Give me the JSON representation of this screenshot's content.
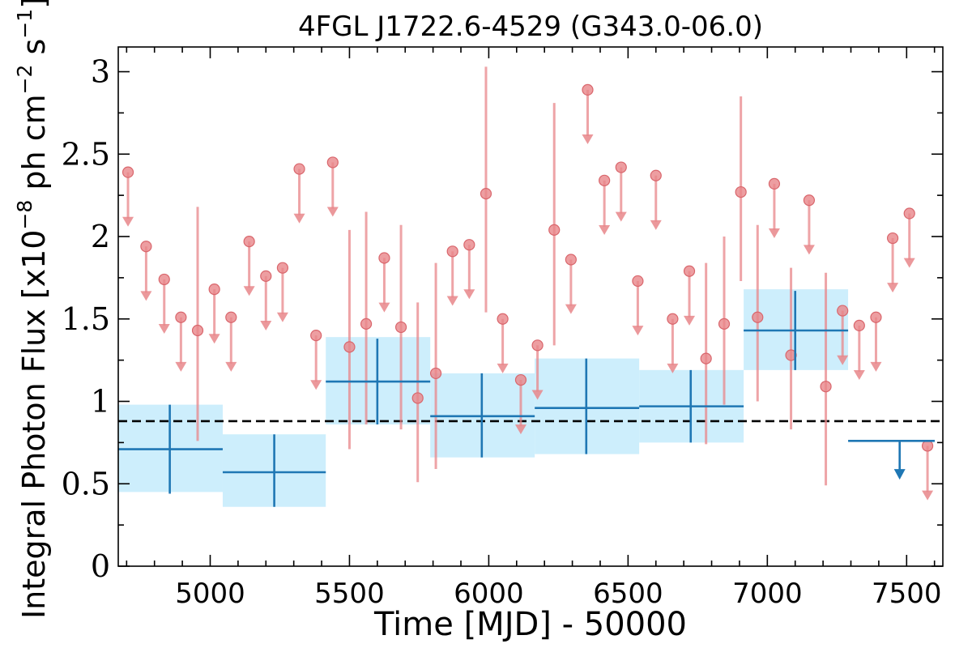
{
  "chart_data": {
    "type": "scatter",
    "title": "4FGL J1722.6-4529 (G343.0-06.0)",
    "xlabel": "Time [MJD] - 50000",
    "ylabel": "Integral Photon Flux [x10",
    "ylabel_exp1": "−8",
    "ylabel_mid": " ph cm",
    "ylabel_exp2": "−2",
    "ylabel_mid2": " s",
    "ylabel_exp3": "−1",
    "ylabel_end": "]",
    "xlim": [
      4670,
      7630
    ],
    "ylim": [
      0,
      3.15
    ],
    "x_ticks": [
      5000,
      5500,
      6000,
      6500,
      7000,
      7500
    ],
    "x_tick_labels": [
      "5000",
      "5500",
      "6000",
      "6500",
      "7000",
      "7500"
    ],
    "y_ticks": [
      0,
      0.5,
      1,
      1.5,
      2,
      2.5,
      3
    ],
    "y_tick_labels": [
      "0",
      "0.5",
      "1",
      "1.5",
      "2",
      "2.5",
      "3"
    ],
    "mean_flux": 0.88,
    "colors": {
      "short_bin": "#e8868a",
      "long_bin": "#1f77b4",
      "band": "#cdeefc",
      "mean_line": "#000000"
    },
    "short_bins": {
      "detections": [
        {
          "x": 4955,
          "y": 1.43,
          "lo": 0.76,
          "hi": 2.18
        },
        {
          "x": 5500,
          "y": 1.33,
          "lo": 0.71,
          "hi": 2.04
        },
        {
          "x": 5560,
          "y": 1.47,
          "lo": 0.86,
          "hi": 2.15
        },
        {
          "x": 5685,
          "y": 1.45,
          "lo": 0.83,
          "hi": 2.07
        },
        {
          "x": 5745,
          "y": 1.02,
          "lo": 0.51,
          "hi": 1.6
        },
        {
          "x": 5810,
          "y": 1.17,
          "lo": 0.59,
          "hi": 1.84
        },
        {
          "x": 5990,
          "y": 2.26,
          "lo": 1.54,
          "hi": 3.03
        },
        {
          "x": 6235,
          "y": 2.04,
          "lo": 1.34,
          "hi": 2.81
        },
        {
          "x": 6780,
          "y": 1.26,
          "lo": 0.74,
          "hi": 1.84
        },
        {
          "x": 6845,
          "y": 1.47,
          "lo": 0.98,
          "hi": 2.0
        },
        {
          "x": 6905,
          "y": 2.27,
          "lo": 1.73,
          "hi": 2.85
        },
        {
          "x": 6965,
          "y": 1.51,
          "lo": 1.0,
          "hi": 2.07
        },
        {
          "x": 7085,
          "y": 1.28,
          "lo": 0.83,
          "hi": 1.81
        },
        {
          "x": 7210,
          "y": 1.09,
          "lo": 0.49,
          "hi": 1.78
        }
      ],
      "upper_limits": [
        {
          "x": 4705,
          "y": 2.39
        },
        {
          "x": 4770,
          "y": 1.94
        },
        {
          "x": 4835,
          "y": 1.74
        },
        {
          "x": 4895,
          "y": 1.51
        },
        {
          "x": 5015,
          "y": 1.68
        },
        {
          "x": 5075,
          "y": 1.51
        },
        {
          "x": 5140,
          "y": 1.97
        },
        {
          "x": 5200,
          "y": 1.76
        },
        {
          "x": 5260,
          "y": 1.81
        },
        {
          "x": 5320,
          "y": 2.41
        },
        {
          "x": 5380,
          "y": 1.4
        },
        {
          "x": 5440,
          "y": 2.45
        },
        {
          "x": 5625,
          "y": 1.87
        },
        {
          "x": 5870,
          "y": 1.91
        },
        {
          "x": 5930,
          "y": 1.95
        },
        {
          "x": 6050,
          "y": 1.5
        },
        {
          "x": 6115,
          "y": 1.13
        },
        {
          "x": 6175,
          "y": 1.34
        },
        {
          "x": 6295,
          "y": 1.86
        },
        {
          "x": 6355,
          "y": 2.89
        },
        {
          "x": 6415,
          "y": 2.34
        },
        {
          "x": 6475,
          "y": 2.42
        },
        {
          "x": 6535,
          "y": 1.73
        },
        {
          "x": 6600,
          "y": 2.37
        },
        {
          "x": 6660,
          "y": 1.5
        },
        {
          "x": 6720,
          "y": 1.79
        },
        {
          "x": 7025,
          "y": 2.32
        },
        {
          "x": 7150,
          "y": 2.22
        },
        {
          "x": 7270,
          "y": 1.55
        },
        {
          "x": 7330,
          "y": 1.46
        },
        {
          "x": 7390,
          "y": 1.51
        },
        {
          "x": 7450,
          "y": 1.99
        },
        {
          "x": 7510,
          "y": 2.14
        },
        {
          "x": 7575,
          "y": 0.73
        }
      ]
    },
    "long_bins": {
      "detections": [
        {
          "x0": 4670,
          "x1": 5045,
          "x": 4855,
          "y": 0.71,
          "lo": 0.44,
          "hi": 0.98,
          "band_lo": 0.45,
          "band_hi": 0.98
        },
        {
          "x0": 5045,
          "x1": 5415,
          "x": 5230,
          "y": 0.57,
          "lo": 0.36,
          "hi": 0.8,
          "band_lo": 0.36,
          "band_hi": 0.8
        },
        {
          "x0": 5415,
          "x1": 5790,
          "x": 5600,
          "y": 1.12,
          "lo": 0.86,
          "hi": 1.38,
          "band_lo": 0.86,
          "band_hi": 1.39
        },
        {
          "x0": 5790,
          "x1": 6165,
          "x": 5975,
          "y": 0.91,
          "lo": 0.66,
          "hi": 1.17,
          "band_lo": 0.66,
          "band_hi": 1.17
        },
        {
          "x0": 6165,
          "x1": 6540,
          "x": 6350,
          "y": 0.96,
          "lo": 0.68,
          "hi": 1.26,
          "band_lo": 0.68,
          "band_hi": 1.26
        },
        {
          "x0": 6540,
          "x1": 6915,
          "x": 6725,
          "y": 0.97,
          "lo": 0.75,
          "hi": 1.19,
          "band_lo": 0.75,
          "band_hi": 1.19
        },
        {
          "x0": 6915,
          "x1": 7290,
          "x": 7100,
          "y": 1.43,
          "lo": 1.19,
          "hi": 1.67,
          "band_lo": 1.19,
          "band_hi": 1.68
        }
      ],
      "upper_limits": [
        {
          "x0": 7290,
          "x1": 7665,
          "x": 7475,
          "y": 0.76
        }
      ]
    }
  }
}
